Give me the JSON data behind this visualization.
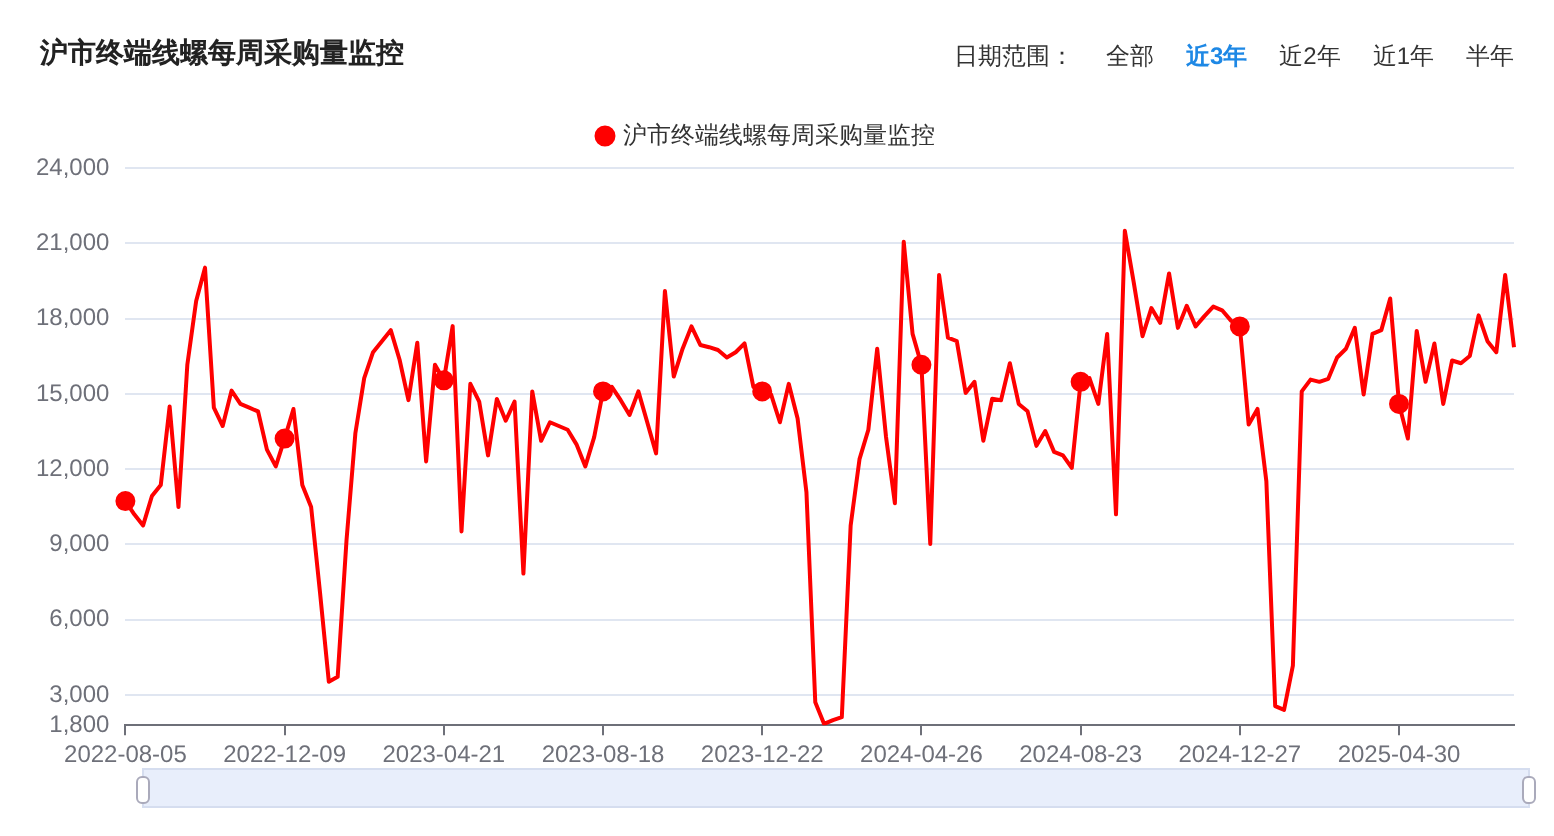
{
  "chart_data": {
    "type": "line",
    "title": "沪市终端线螺每周采购量监控",
    "annotations": [
      "日期范围：",
      "全部",
      "近3年",
      "近2年",
      "近1年",
      "半年"
    ],
    "categories": [
      "2022-08-05",
      null,
      null,
      null,
      null,
      null,
      null,
      null,
      null,
      null,
      null,
      null,
      null,
      null,
      null,
      null,
      null,
      null,
      "2022-12-09",
      null,
      null,
      null,
      null,
      null,
      null,
      null,
      null,
      null,
      null,
      null,
      null,
      null,
      null,
      null,
      null,
      null,
      "2023-04-21",
      null,
      null,
      null,
      null,
      null,
      null,
      null,
      null,
      null,
      null,
      null,
      null,
      null,
      null,
      null,
      null,
      null,
      "2023-08-18",
      null,
      null,
      null,
      null,
      null,
      null,
      null,
      null,
      null,
      null,
      null,
      null,
      null,
      null,
      null,
      null,
      null,
      "2023-12-22",
      null,
      null,
      null,
      null,
      null,
      null,
      null,
      null,
      null,
      null,
      null,
      null,
      null,
      null,
      null,
      null,
      null,
      "2024-04-26",
      null,
      null,
      null,
      null,
      null,
      null,
      null,
      null,
      null,
      null,
      null,
      null,
      null,
      null,
      null,
      null,
      null,
      "2024-08-23",
      null,
      null,
      null,
      null,
      null,
      null,
      null,
      null,
      null,
      null,
      null,
      null,
      null,
      null,
      null,
      null,
      null,
      "2024-12-27",
      null,
      null,
      null,
      null,
      null,
      null,
      null,
      null,
      null,
      null,
      null,
      null,
      null,
      null,
      null,
      null,
      null,
      "2025-04-30",
      null,
      null,
      null,
      null,
      null,
      null,
      null,
      null,
      null,
      null,
      null,
      null,
      null
    ],
    "series": [
      {
        "name": "沪市终端线螺每周采购量监控",
        "color": "#ff0000",
        "values": [
          10730,
          10200,
          9760,
          10930,
          11370,
          14500,
          10490,
          16160,
          18700,
          20030,
          14450,
          13720,
          15130,
          14600,
          14450,
          14300,
          12780,
          12110,
          13220,
          14400,
          11370,
          10490,
          7100,
          3530,
          3730,
          9170,
          13430,
          15630,
          16660,
          17100,
          17540,
          16360,
          14750,
          17040,
          12310,
          16160,
          15540,
          17700,
          9520,
          15400,
          14690,
          12550,
          14800,
          13930,
          14690,
          7840,
          15100,
          13130,
          13870,
          13720,
          13570,
          12990,
          12110,
          13280,
          15100,
          15280,
          14750,
          14160,
          15100,
          13870,
          12630,
          19100,
          15690,
          16800,
          17690,
          16950,
          16860,
          16750,
          16450,
          16660,
          17010,
          15280,
          15100,
          14980,
          13870,
          15400,
          14020,
          11080,
          2710,
          1850,
          2000,
          2120,
          9760,
          12400,
          13570,
          16800,
          13280,
          10640,
          21060,
          17390,
          16160,
          9020,
          19740,
          17240,
          17100,
          15040,
          15480,
          13130,
          14810,
          14750,
          16220,
          14600,
          14310,
          12930,
          13520,
          12690,
          12550,
          12050,
          15480,
          15630,
          14600,
          17390,
          10200,
          21500,
          19450,
          17300,
          18420,
          17830,
          19800,
          17630,
          18510,
          17690,
          18100,
          18480,
          18330,
          17920,
          17690,
          13780,
          14400,
          11520,
          2560,
          2410,
          4170,
          15100,
          15570,
          15480,
          15600,
          16450,
          16800,
          17630,
          14980,
          17390,
          17540,
          18800,
          14600,
          13220,
          17510,
          15480,
          17010,
          14600,
          16330,
          16220,
          16510,
          18130,
          17100,
          16660,
          19740,
          16860
        ]
      }
    ],
    "ylim": [
      1800,
      24000
    ],
    "yticks": [
      {
        "value": 1800,
        "label": "1,800"
      },
      {
        "value": 3000,
        "label": "3,000"
      },
      {
        "value": 6000,
        "label": "6,000"
      },
      {
        "value": 9000,
        "label": "9,000"
      },
      {
        "value": 12000,
        "label": "12,000"
      },
      {
        "value": 15000,
        "label": "15,000"
      },
      {
        "value": 18000,
        "label": "18,000"
      },
      {
        "value": 21000,
        "label": "21,000"
      },
      {
        "value": 24000,
        "label": "24,000"
      }
    ],
    "grid": "y",
    "legend": "top",
    "line_style": "solid"
  }
}
